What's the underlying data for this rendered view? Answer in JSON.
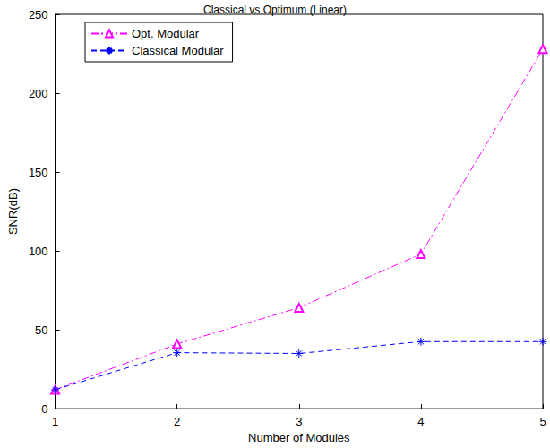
{
  "chart_data": {
    "type": "line",
    "title": "Classical vs Optimum (Linear)",
    "x_label": "Number of Modules",
    "y_label": "SNR(dB)",
    "x": [
      1,
      2,
      3,
      4,
      5
    ],
    "series": [
      {
        "name": "Opt. Modular",
        "color": "#ff00ff",
        "marker": "triangle",
        "line_style": "dashdot",
        "values": [
          12,
          41,
          64,
          98,
          228
        ]
      },
      {
        "name": "Classical Modular",
        "color": "#0000ff",
        "marker": "asterisk",
        "line_style": "dashed",
        "values": [
          12,
          35.5,
          35,
          42.5,
          42.5
        ]
      }
    ],
    "xlim": [
      1,
      5
    ],
    "xticks": [
      1,
      2,
      3,
      4,
      5
    ],
    "ylim": [
      0,
      250
    ],
    "yticks": [
      0,
      50,
      100,
      150,
      200,
      250
    ],
    "grid": false,
    "legend": "top-left"
  }
}
